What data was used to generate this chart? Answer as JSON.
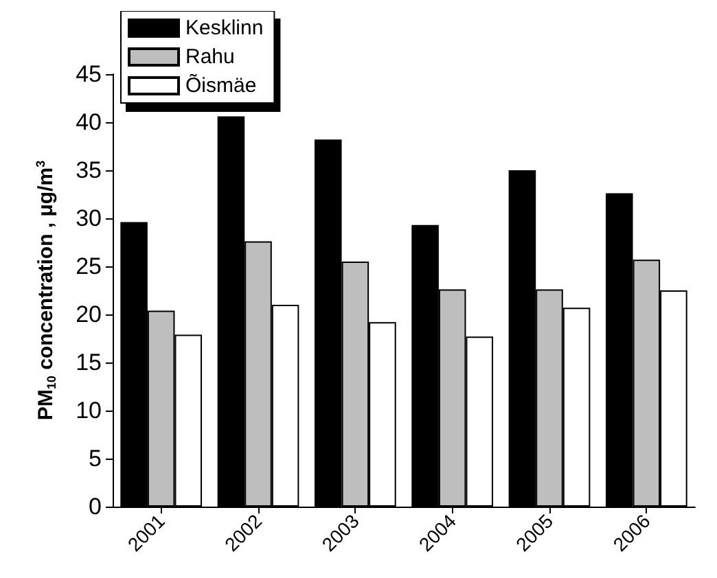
{
  "chart_data": {
    "type": "bar",
    "ylabel": "PM$_{10}$ concentration , μg/m$^{3}$",
    "categories": [
      "2001",
      "2002",
      "2003",
      "2004",
      "2005",
      "2006"
    ],
    "series": [
      {
        "name": "Kesklinn",
        "color": "#000000",
        "values": [
          29.6,
          40.6,
          38.2,
          29.3,
          35.0,
          32.6
        ]
      },
      {
        "name": "Rahu",
        "color": "#bebebe",
        "values": [
          20.4,
          27.6,
          25.5,
          22.6,
          22.6,
          25.7
        ]
      },
      {
        "name": "Õismäe",
        "color": "#ffffff",
        "values": [
          17.9,
          21.0,
          19.2,
          17.7,
          20.7,
          22.5
        ]
      }
    ],
    "ylim": [
      0,
      45
    ],
    "yticks": [
      0,
      5,
      10,
      15,
      20,
      25,
      30,
      35,
      40,
      45
    ],
    "grid": false,
    "legend": "top left"
  }
}
